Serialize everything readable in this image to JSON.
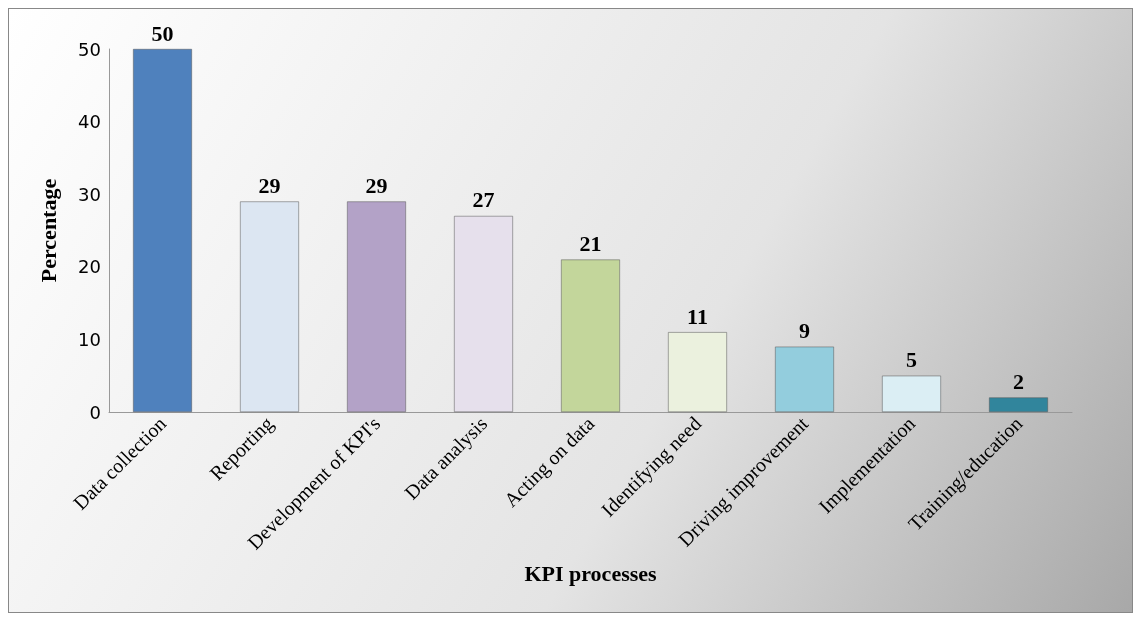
{
  "chart_data": {
    "type": "bar",
    "xlabel": "KPI processes",
    "ylabel": "Percentage",
    "categories": [
      "Data collection",
      "Reporting",
      "Development of KPI's",
      "Data analysis",
      "Acting on data",
      "Identifying need",
      "Driving improvement",
      "Implementation",
      "Training/education"
    ],
    "values": [
      50,
      29,
      29,
      27,
      21,
      11,
      9,
      5,
      2
    ],
    "colors": [
      "#4f81bd",
      "#dce6f2",
      "#b3a2c7",
      "#e6e0ec",
      "#c3d69b",
      "#ebf1de",
      "#93cddd",
      "#dbeef4",
      "#31859c"
    ],
    "ylim": [
      0,
      50
    ],
    "yticks": [
      0,
      10,
      20,
      30,
      40,
      50
    ],
    "grid": false,
    "data_labels": true
  }
}
